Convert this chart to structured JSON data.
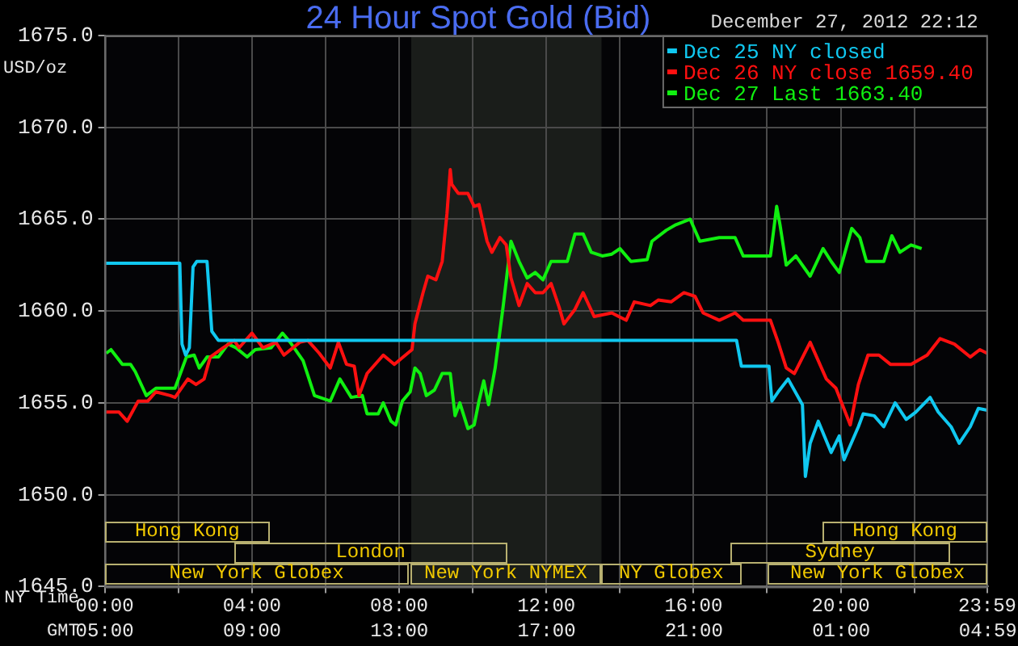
{
  "chart_data": {
    "type": "line",
    "title": "24 Hour Spot Gold (Bid)",
    "ylabel": "USD/oz",
    "xlabel": "NY Time",
    "x2label": "GMT",
    "annotations": [
      "December 27, 2012 22:12",
      "Hong Kong",
      "Hong Kong",
      "London",
      "Sydney",
      "New York Globex",
      "New York NYMEX",
      "NY Globex",
      "New York Globex"
    ],
    "legend": "top right",
    "grid": true,
    "xlim": [
      0,
      24
    ],
    "xticks": [
      {
        "value": 0,
        "label": "00:00"
      },
      {
        "value": 2,
        "label": null
      },
      {
        "value": 4,
        "label": "04:00"
      },
      {
        "value": 6,
        "label": null
      },
      {
        "value": 8,
        "label": "08:00"
      },
      {
        "value": 10,
        "label": null
      },
      {
        "value": 12,
        "label": "12:00"
      },
      {
        "value": 14,
        "label": null
      },
      {
        "value": 16,
        "label": "16:00"
      },
      {
        "value": 18,
        "label": null
      },
      {
        "value": 20,
        "label": "20:00"
      },
      {
        "value": 22,
        "label": null
      },
      {
        "value": 23.983,
        "label": "23:59"
      }
    ],
    "x2lim": [
      "2012-12-27T05:00",
      "2012-12-28T04:59"
    ],
    "x2ticks": [
      {
        "value": "2012-12-27T05:00",
        "label": "05:00"
      },
      {
        "value": "2012-12-27T09:00",
        "label": "09:00"
      },
      {
        "value": "2012-12-27T13:00",
        "label": "13:00"
      },
      {
        "value": "2012-12-27T17:00",
        "label": "17:00"
      },
      {
        "value": "2012-12-27T21:00",
        "label": "21:00"
      },
      {
        "value": "2012-12-28T01:00",
        "label": "01:00"
      },
      {
        "value": "2012-12-28T04:59",
        "label": "04:59"
      }
    ],
    "ylim": [
      1645,
      1675
    ],
    "yticks": [
      {
        "value": 1645,
        "label": "1645.0"
      },
      {
        "value": 1650,
        "label": "1650.0"
      },
      {
        "value": 1655,
        "label": "1655.0"
      },
      {
        "value": 1660,
        "label": "1660.0"
      },
      {
        "value": 1665,
        "label": "1665.0"
      },
      {
        "value": 1670,
        "label": "1670.0"
      },
      {
        "value": 1675,
        "label": "1675.0"
      }
    ],
    "bands": [
      {
        "axis": "x",
        "from": 8.33,
        "to": 13.5,
        "color": "#1a1d1a"
      }
    ],
    "series": [
      {
        "name": "Dec 25 NY closed",
        "color": "#10c8f0",
        "x": [
          0,
          2.04,
          2.1,
          2.2,
          2.3,
          2.4,
          2.5,
          2.78,
          2.91,
          3.09,
          17.17,
          17.3,
          18.05,
          18.13,
          18.3,
          18.57,
          18.96,
          19.04,
          19.17,
          19.39,
          19.74,
          19.96,
          20.09,
          20.48,
          20.61,
          20.91,
          21.17,
          21.48,
          21.78,
          22.04,
          22.43,
          22.65,
          23.0,
          23.22,
          23.52,
          23.74,
          23.98
        ],
        "values": [
          1662.6,
          1662.6,
          1658.2,
          1657.6,
          1658.0,
          1662.4,
          1662.7,
          1662.7,
          1658.9,
          1658.4,
          1658.4,
          1657.0,
          1657.0,
          1655.1,
          1655.6,
          1656.3,
          1654.9,
          1651.0,
          1652.8,
          1654.0,
          1652.3,
          1653.2,
          1651.9,
          1653.7,
          1654.4,
          1654.3,
          1653.7,
          1655.0,
          1654.1,
          1654.5,
          1655.3,
          1654.5,
          1653.7,
          1652.8,
          1653.7,
          1654.7,
          1654.6
        ]
      },
      {
        "name": "Dec 26 NY close 1659.40",
        "color": "#ff1010",
        "x": [
          0.04,
          0.39,
          0.61,
          0.91,
          1.17,
          1.39,
          1.78,
          1.91,
          2.26,
          2.48,
          2.7,
          2.87,
          3.22,
          3.52,
          3.65,
          4.0,
          4.3,
          4.65,
          4.87,
          5.3,
          5.52,
          5.83,
          6.13,
          6.35,
          6.57,
          6.78,
          6.91,
          7.13,
          7.57,
          7.87,
          8.35,
          8.43,
          8.65,
          8.78,
          9.0,
          9.17,
          9.3,
          9.39,
          9.43,
          9.61,
          9.87,
          10.04,
          10.17,
          10.39,
          10.52,
          10.74,
          10.91,
          11.04,
          11.26,
          11.48,
          11.7,
          11.91,
          12.13,
          12.35,
          12.48,
          12.78,
          13.0,
          13.3,
          13.78,
          14.17,
          14.39,
          14.83,
          15.04,
          15.39,
          15.74,
          16.04,
          16.26,
          16.7,
          17.13,
          17.35,
          18.09,
          18.3,
          18.52,
          18.74,
          19.17,
          19.61,
          19.87,
          20.26,
          20.48,
          20.74,
          21.04,
          21.35,
          21.91,
          22.35,
          22.7,
          23.09,
          23.52,
          23.78,
          23.98
        ],
        "values": [
          1654.5,
          1654.5,
          1654.0,
          1655.1,
          1655.1,
          1655.6,
          1655.4,
          1655.3,
          1656.3,
          1656.0,
          1656.3,
          1657.5,
          1658.0,
          1658.4,
          1658.0,
          1658.8,
          1658.0,
          1658.3,
          1657.6,
          1658.3,
          1658.4,
          1657.7,
          1656.9,
          1658.3,
          1657.1,
          1657.0,
          1655.4,
          1656.6,
          1657.6,
          1657.1,
          1657.9,
          1659.3,
          1661.0,
          1661.9,
          1661.7,
          1662.7,
          1665.3,
          1667.7,
          1666.9,
          1666.4,
          1666.4,
          1665.7,
          1665.8,
          1663.8,
          1663.2,
          1664.0,
          1663.6,
          1661.8,
          1660.3,
          1661.5,
          1661.0,
          1661.0,
          1661.5,
          1660.2,
          1659.3,
          1660.1,
          1661.0,
          1659.7,
          1659.9,
          1659.5,
          1660.5,
          1660.3,
          1660.6,
          1660.5,
          1661.0,
          1660.8,
          1659.9,
          1659.5,
          1659.9,
          1659.5,
          1659.5,
          1658.3,
          1656.9,
          1656.6,
          1658.3,
          1656.3,
          1655.8,
          1653.8,
          1656.0,
          1657.6,
          1657.6,
          1657.1,
          1657.1,
          1657.6,
          1658.5,
          1658.2,
          1657.5,
          1657.9,
          1657.7
        ]
      },
      {
        "name": "Dec 27 Last 1663.40",
        "color": "#10f010",
        "x": [
          0.04,
          0.17,
          0.48,
          0.7,
          0.83,
          1.13,
          1.39,
          1.91,
          2.22,
          2.43,
          2.57,
          2.78,
          3.09,
          3.35,
          3.57,
          3.87,
          4.09,
          4.52,
          4.83,
          5.04,
          5.39,
          5.7,
          6.13,
          6.39,
          6.7,
          7.0,
          7.13,
          7.43,
          7.57,
          7.78,
          7.91,
          8.09,
          8.3,
          8.43,
          8.57,
          8.74,
          8.96,
          9.17,
          9.39,
          9.52,
          9.65,
          9.87,
          10.04,
          10.17,
          10.3,
          10.43,
          10.61,
          10.83,
          11.04,
          11.26,
          11.48,
          11.7,
          11.91,
          12.13,
          12.57,
          12.78,
          13.0,
          13.22,
          13.52,
          13.78,
          14.0,
          14.3,
          14.74,
          14.87,
          15.26,
          15.52,
          15.91,
          16.17,
          16.7,
          17.13,
          17.35,
          18.09,
          18.26,
          18.35,
          18.52,
          18.78,
          19.17,
          19.52,
          19.74,
          19.96,
          20.09,
          20.3,
          20.52,
          20.7,
          21.17,
          21.39,
          21.61,
          21.91,
          22.2
        ],
        "values": [
          1657.7,
          1657.9,
          1657.1,
          1657.1,
          1656.7,
          1655.4,
          1655.8,
          1655.8,
          1657.5,
          1657.6,
          1656.9,
          1657.5,
          1657.5,
          1658.2,
          1658.0,
          1657.5,
          1657.9,
          1658.0,
          1658.8,
          1658.3,
          1657.3,
          1655.4,
          1655.1,
          1656.3,
          1655.3,
          1655.4,
          1654.4,
          1654.4,
          1655.0,
          1654.0,
          1653.8,
          1655.1,
          1655.6,
          1656.9,
          1656.6,
          1655.4,
          1655.7,
          1656.6,
          1656.6,
          1654.3,
          1655.0,
          1653.6,
          1653.8,
          1655.1,
          1656.2,
          1654.9,
          1656.9,
          1660.3,
          1663.8,
          1662.7,
          1661.8,
          1662.1,
          1661.7,
          1662.7,
          1662.7,
          1664.2,
          1664.2,
          1663.2,
          1663.0,
          1663.1,
          1663.4,
          1662.7,
          1662.8,
          1663.8,
          1664.4,
          1664.7,
          1665.0,
          1663.8,
          1664.0,
          1664.0,
          1663.0,
          1663.0,
          1665.7,
          1664.7,
          1662.5,
          1663.0,
          1661.9,
          1663.4,
          1662.7,
          1662.1,
          1663.0,
          1664.5,
          1664.0,
          1662.7,
          1662.7,
          1664.1,
          1663.2,
          1663.6,
          1663.4
        ]
      }
    ]
  }
}
